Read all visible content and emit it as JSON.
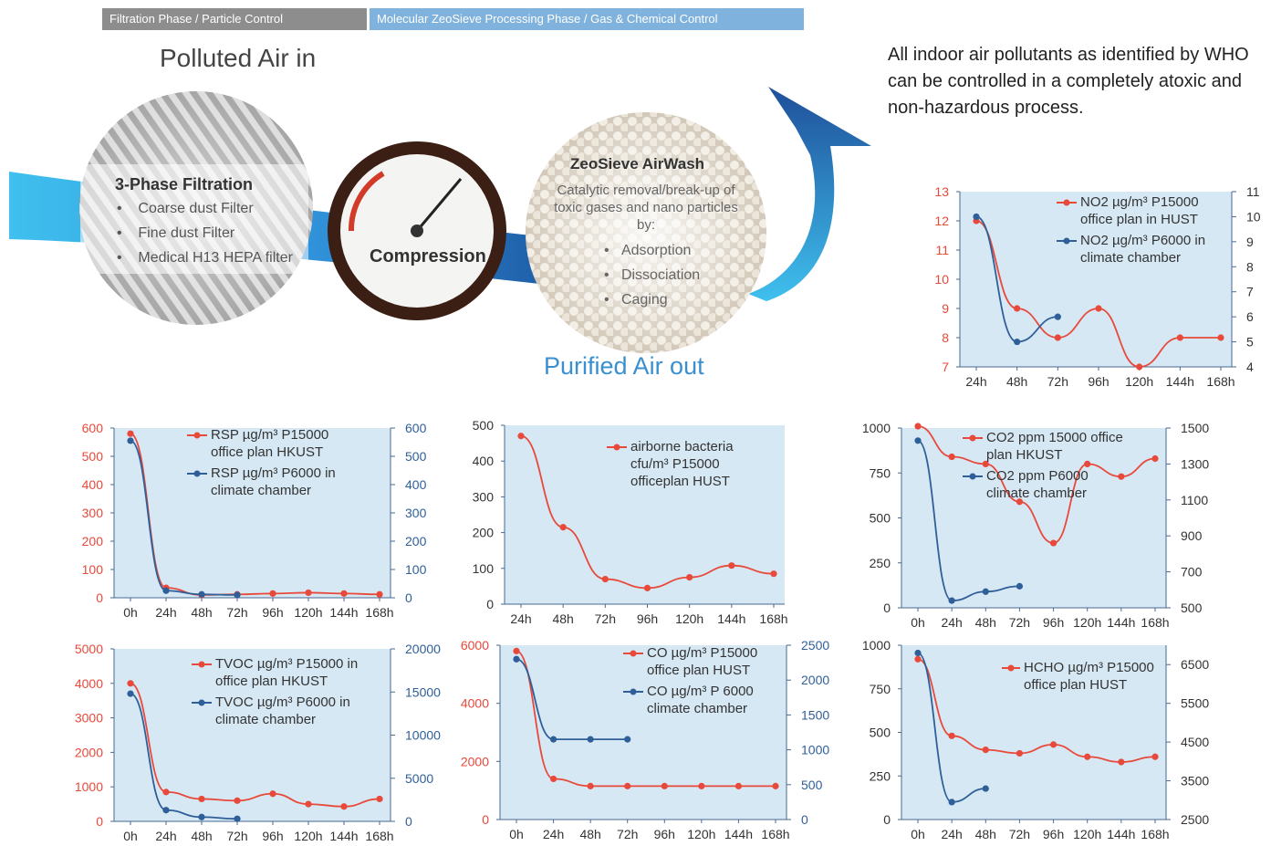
{
  "header": {
    "tab_filtration": "Filtration Phase / Particle Control",
    "tab_molecular": "Molecular ZeoSieve Processing Phase / Gas & Chemical Control",
    "polluted_air": "Polluted Air in",
    "purified_air": "Purified Air out",
    "who_note": "All indoor air pollutants as identified by WHO can be controlled in a completely atoxic and non-hazardous process."
  },
  "filtration": {
    "title": "3-Phase Filtration",
    "items": [
      "Coarse dust Filter",
      "Fine dust Filter",
      "Medical H13 HEPA filter"
    ]
  },
  "compression": {
    "label": "Compression"
  },
  "zeosieve": {
    "title": "ZeoSieve AirWash",
    "description": "Catalytic removal/break-up of toxic gases and nano particles by:",
    "items": [
      "Adsorption",
      "Dissociation",
      "Caging"
    ]
  },
  "colors": {
    "red": "#e8493b",
    "blue": "#2f5f99",
    "panel": "#d6e8f4",
    "arrow": "#3aa8e0",
    "arrow_dark": "#1f5ea8"
  },
  "chart_data": [
    {
      "id": "no2",
      "type": "line",
      "categories": [
        "24h",
        "48h",
        "72h",
        "96h",
        "120h",
        "144h",
        "168h"
      ],
      "ylim_left": [
        7,
        13
      ],
      "yticks_left": [
        "13",
        "12",
        "11",
        "10",
        "9",
        "8",
        "7"
      ],
      "ylim_right": [
        4,
        11
      ],
      "yticks_right": [
        "11",
        "10",
        "9",
        "8",
        "7",
        "6",
        "5",
        "4"
      ],
      "series": [
        {
          "name": "NO2 µg/m³ P15000 office plan in HUST",
          "axis": "left",
          "color": "red",
          "values": [
            12,
            9,
            8,
            9,
            7,
            8,
            8
          ]
        },
        {
          "name": "NO2 µg/m³ P6000 in climate chamber",
          "axis": "right",
          "color": "blue",
          "values": [
            10,
            5,
            6,
            null,
            null,
            null,
            null
          ]
        }
      ]
    },
    {
      "id": "rsp",
      "type": "line",
      "categories": [
        "0h",
        "24h",
        "48h",
        "72h",
        "96h",
        "120h",
        "144h",
        "168h"
      ],
      "ylim_left": [
        0,
        600
      ],
      "yticks_left": [
        "600",
        "500",
        "400",
        "300",
        "200",
        "100",
        "0"
      ],
      "ylim_right": [
        0,
        600
      ],
      "yticks_right": [
        "600",
        "500",
        "400",
        "300",
        "200",
        "100",
        "0"
      ],
      "series": [
        {
          "name": "RSP µg/m³ P15000 office plan HKUST",
          "axis": "left",
          "color": "red",
          "values": [
            580,
            35,
            10,
            12,
            15,
            18,
            15,
            12
          ]
        },
        {
          "name": "RSP µg/m³ P6000 in climate chamber",
          "axis": "right",
          "color": "blue",
          "values": [
            555,
            25,
            12,
            10,
            null,
            null,
            null,
            null
          ]
        }
      ]
    },
    {
      "id": "bacteria",
      "type": "line",
      "categories": [
        "24h",
        "48h",
        "72h",
        "96h",
        "120h",
        "144h",
        "168h"
      ],
      "ylim_left": [
        0,
        500
      ],
      "yticks_left": [
        "500",
        "400",
        "300",
        "200",
        "100",
        "0"
      ],
      "series": [
        {
          "name": "airborne bacteria cfu/m³ P15000 officeplan HUST",
          "axis": "left",
          "color": "red",
          "values": [
            470,
            215,
            70,
            45,
            75,
            108,
            85
          ]
        }
      ]
    },
    {
      "id": "co2",
      "type": "line",
      "categories": [
        "0h",
        "24h",
        "48h",
        "72h",
        "96h",
        "120h",
        "144h",
        "168h"
      ],
      "ylim_left": [
        0,
        1000
      ],
      "yticks_left": [
        "1000",
        "750",
        "500",
        "250",
        "0"
      ],
      "ylim_right": [
        500,
        1500
      ],
      "yticks_right": [
        "1500",
        "1300",
        "1100",
        "900",
        "700",
        "500"
      ],
      "series": [
        {
          "name": "CO2 ppm 15000 office plan HKUST",
          "axis": "left",
          "color": "red",
          "values": [
            1010,
            840,
            800,
            590,
            360,
            800,
            730,
            830
          ]
        },
        {
          "name": "CO2 ppm P6000 climate chamber",
          "axis": "right",
          "color": "blue",
          "values": [
            1430,
            540,
            590,
            620,
            null,
            null,
            null,
            null
          ]
        }
      ]
    },
    {
      "id": "tvoc",
      "type": "line",
      "categories": [
        "0h",
        "24h",
        "48h",
        "72h",
        "96h",
        "120h",
        "144h",
        "168h"
      ],
      "ylim_left": [
        0,
        5000
      ],
      "yticks_left": [
        "5000",
        "4000",
        "3000",
        "2000",
        "1000",
        "0"
      ],
      "ylim_right": [
        0,
        20000
      ],
      "yticks_right": [
        "20000",
        "15000",
        "10000",
        "5000",
        "0"
      ],
      "series": [
        {
          "name": "TVOC µg/m³ P15000 in office plan HKUST",
          "axis": "left",
          "color": "red",
          "values": [
            4000,
            850,
            650,
            600,
            800,
            500,
            430,
            650
          ]
        },
        {
          "name": "TVOC µg/m³ P6000 in climate chamber",
          "axis": "right",
          "color": "blue",
          "values": [
            14800,
            1300,
            500,
            300,
            null,
            null,
            null,
            null
          ]
        }
      ]
    },
    {
      "id": "co",
      "type": "line",
      "categories": [
        "0h",
        "24h",
        "48h",
        "72h",
        "96h",
        "120h",
        "144h",
        "168h"
      ],
      "ylim_left": [
        0,
        6000
      ],
      "yticks_left": [
        "6000",
        "4000",
        "2000",
        "0"
      ],
      "ylim_right": [
        0,
        2500
      ],
      "yticks_right": [
        "2500",
        "2000",
        "1500",
        "1000",
        "500",
        "0"
      ],
      "series": [
        {
          "name": "CO µg/m³ P15000 office plan HUST",
          "axis": "left",
          "color": "red",
          "values": [
            5800,
            1400,
            1150,
            1150,
            1150,
            1150,
            1150,
            1150
          ]
        },
        {
          "name": "CO µg/m³ P 6000 climate chamber",
          "axis": "right",
          "color": "blue",
          "values": [
            2300,
            1150,
            1150,
            1150,
            null,
            null,
            null,
            null
          ]
        }
      ]
    },
    {
      "id": "hcho",
      "type": "line",
      "categories": [
        "0h",
        "24h",
        "48h",
        "72h",
        "96h",
        "120h",
        "144h",
        "168h"
      ],
      "ylim_left": [
        0,
        1000
      ],
      "yticks_left": [
        "1000",
        "750",
        "500",
        "250",
        "0"
      ],
      "ylim_right": [
        2500,
        7000
      ],
      "yticks_right": [
        "6500",
        "5500",
        "4500",
        "3500",
        "2500"
      ],
      "series": [
        {
          "name": "HCHO µg/m³ P15000 office plan HUST",
          "axis": "left",
          "color": "red",
          "values": [
            920,
            480,
            400,
            380,
            430,
            360,
            330,
            360
          ]
        },
        {
          "name": "",
          "axis": "right",
          "color": "blue",
          "values": [
            6800,
            2950,
            3300,
            null,
            null,
            null,
            null,
            null
          ]
        }
      ]
    }
  ]
}
